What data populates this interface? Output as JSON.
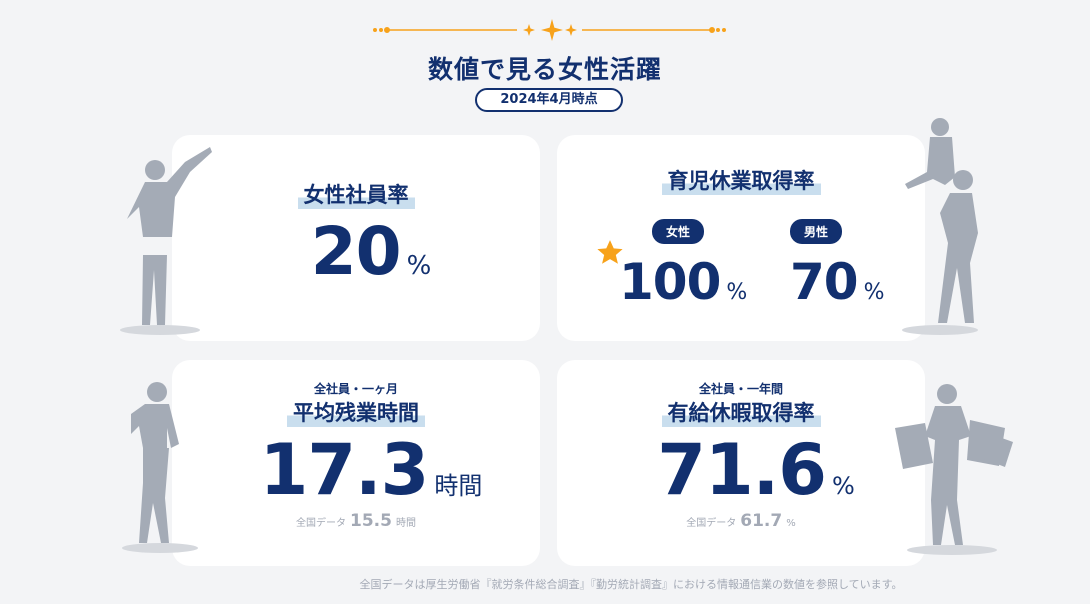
{
  "header": {
    "title": "数値で見る女性活躍",
    "date_badge": "2024年4月時点"
  },
  "colors": {
    "navy": "#12306f",
    "accent": "#f7a21b",
    "highlight": "#c9deee",
    "background": "#f3f4f6"
  },
  "cards": [
    {
      "title": "女性社員率",
      "value": "20",
      "unit": "%"
    },
    {
      "title": "育児休業取得率",
      "female": {
        "label": "女性",
        "value": "100",
        "unit": "%"
      },
      "male": {
        "label": "男性",
        "value": "70",
        "unit": "%"
      },
      "icon": "star-icon"
    },
    {
      "subtitle": "全社員・一ヶ月",
      "title": "平均残業時間",
      "value": "17.3",
      "unit": "時間",
      "national": {
        "label": "全国データ",
        "value": "15.5",
        "unit": "時間"
      }
    },
    {
      "subtitle": "全社員・一年間",
      "title": "有給休暇取得率",
      "value": "71.6",
      "unit": "%",
      "national": {
        "label": "全国データ",
        "value": "61.7",
        "unit": "%"
      }
    }
  ],
  "footnote": "全国データは厚生労働省『就労条件総合調査』『勤労統計調査』における情報通信業の数値を参照しています。"
}
